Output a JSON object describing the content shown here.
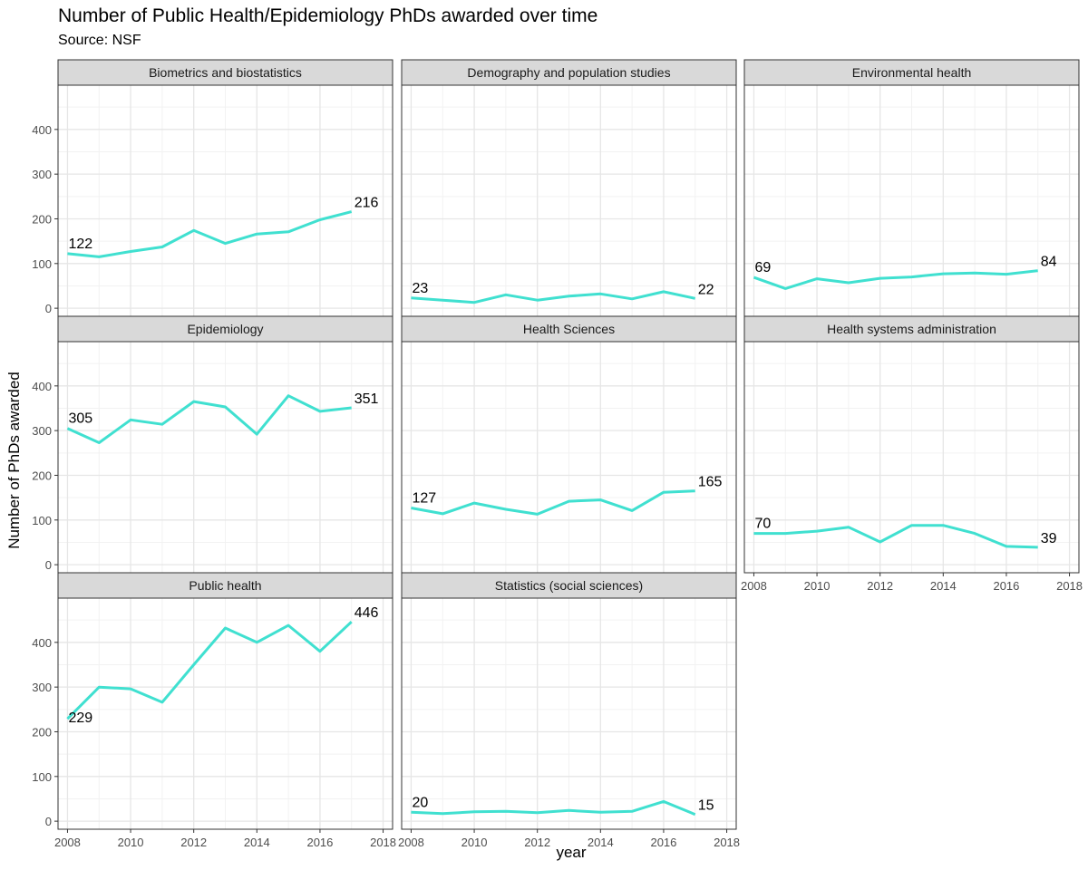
{
  "title": "Number of Public Health/Epidemiology PhDs awarded over time",
  "subtitle": "Source: NSF",
  "chart_data": {
    "type": "line",
    "facet_layout": "wrap, 3 columns",
    "xlabel": "year",
    "ylabel": "Number of PhDs awarded",
    "xlim": [
      2007.7,
      2018.3
    ],
    "ylim": [
      -18,
      499
    ],
    "x_ticks": [
      2008,
      2010,
      2012,
      2014,
      2016,
      2018
    ],
    "y_ticks": [
      0,
      100,
      200,
      300,
      400
    ],
    "x": [
      2008,
      2009,
      2010,
      2011,
      2012,
      2013,
      2014,
      2015,
      2016,
      2017
    ],
    "line_color": "#40E0D0",
    "strip_fill": "#D9D9D9",
    "grid": true,
    "x_tick_labels": [
      "2008",
      "2010",
      "2012",
      "2014",
      "2016",
      "2018"
    ],
    "y_tick_labels": [
      "0",
      "100",
      "200",
      "300",
      "400"
    ],
    "series": [
      {
        "name": "Biometrics and biostatistics",
        "values": [
          122,
          115,
          127,
          137,
          174,
          145,
          166,
          171,
          198,
          216
        ],
        "first_label": "122",
        "last_label": "216"
      },
      {
        "name": "Demography and population studies",
        "values": [
          23,
          18,
          13,
          30,
          18,
          27,
          32,
          21,
          37,
          22
        ],
        "first_label": "23",
        "last_label": "22"
      },
      {
        "name": "Environmental health",
        "values": [
          69,
          44,
          66,
          57,
          67,
          70,
          77,
          79,
          76,
          84
        ],
        "first_label": "69",
        "last_label": "84"
      },
      {
        "name": "Epidemiology",
        "values": [
          305,
          273,
          324,
          314,
          365,
          353,
          292,
          378,
          343,
          351
        ],
        "first_label": "305",
        "last_label": "351"
      },
      {
        "name": "Health Sciences",
        "values": [
          127,
          114,
          138,
          124,
          113,
          142,
          145,
          121,
          162,
          165
        ],
        "first_label": "127",
        "last_label": "165"
      },
      {
        "name": "Health systems administration",
        "values": [
          70,
          70,
          75,
          84,
          51,
          88,
          88,
          70,
          41,
          39
        ],
        "first_label": "70",
        "last_label": "39"
      },
      {
        "name": "Public health",
        "values": [
          229,
          300,
          296,
          266,
          350,
          432,
          400,
          438,
          380,
          446
        ],
        "first_label": "229",
        "last_label": "446"
      },
      {
        "name": "Statistics (social sciences)",
        "values": [
          20,
          17,
          21,
          22,
          19,
          24,
          20,
          22,
          44,
          15
        ],
        "first_label": "20",
        "last_label": "15"
      }
    ]
  }
}
